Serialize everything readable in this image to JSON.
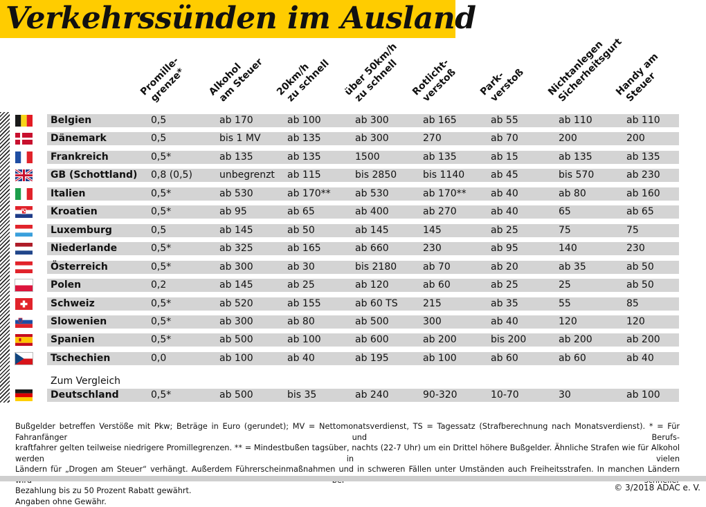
{
  "title": "Verkehrssünden im Ausland",
  "columns": [
    {
      "lines": [
        "Promille-",
        "grenze*"
      ]
    },
    {
      "lines": [
        "Alkohol",
        "am Steuer"
      ]
    },
    {
      "lines": [
        "20km/h",
        "zu schnell"
      ]
    },
    {
      "lines": [
        "über 50km/h",
        "zu schnell"
      ]
    },
    {
      "lines": [
        "Rotlicht-",
        "verstoß"
      ]
    },
    {
      "lines": [
        "Park-",
        "verstoß"
      ]
    },
    {
      "lines": [
        "Nichtanlegen",
        "Sicherheitsgurt"
      ]
    },
    {
      "lines": [
        "Handy am",
        "Steuer"
      ]
    }
  ],
  "rows": [
    {
      "country": "Belgien",
      "flag": "belgium-flag",
      "values": [
        "0,5",
        "ab 170",
        "ab 100",
        "ab 300",
        "ab 165",
        "ab 55",
        "ab 110",
        "ab 110"
      ]
    },
    {
      "country": "Dänemark",
      "flag": "denmark-flag",
      "values": [
        "0,5",
        "bis 1 MV",
        "ab 135",
        "ab 300",
        "270",
        "ab 70",
        "200",
        "200"
      ]
    },
    {
      "country": "Frankreich",
      "flag": "france-flag",
      "values": [
        "0,5*",
        "ab 135",
        "ab 135",
        "1500",
        "ab 135",
        "ab 15",
        "ab 135",
        "ab 135"
      ]
    },
    {
      "country": "GB (Schottland)",
      "flag": "uk-flag",
      "values": [
        "0,8 (0,5)",
        "unbegrenzt",
        "ab 115",
        "bis 2850",
        "bis 1140",
        "ab 45",
        "bis 570",
        "ab 230"
      ]
    },
    {
      "country": "Italien",
      "flag": "italy-flag",
      "values": [
        "0,5*",
        "ab 530",
        "ab 170**",
        "ab 530",
        "ab 170**",
        "ab 40",
        "ab 80",
        "ab 160"
      ]
    },
    {
      "country": "Kroatien",
      "flag": "croatia-flag",
      "values": [
        "0,5*",
        "ab 95",
        "ab 65",
        "ab 400",
        "ab 270",
        "ab 40",
        "65",
        "ab 65"
      ]
    },
    {
      "country": "Luxemburg",
      "flag": "luxembourg-flag",
      "values": [
        "0,5",
        "ab 145",
        "ab 50",
        "ab 145",
        "145",
        "ab 25",
        "75",
        "75"
      ]
    },
    {
      "country": "Niederlande",
      "flag": "netherlands-flag",
      "values": [
        "0,5*",
        "ab 325",
        "ab 165",
        "ab 660",
        "230",
        "ab 95",
        "140",
        "230"
      ]
    },
    {
      "country": "Österreich",
      "flag": "austria-flag",
      "values": [
        "0,5*",
        "ab 300",
        "ab 30",
        "bis 2180",
        "ab 70",
        "ab 20",
        "ab 35",
        "ab 50"
      ]
    },
    {
      "country": "Polen",
      "flag": "poland-flag",
      "values": [
        "0,2",
        "ab 145",
        "ab 25",
        "ab 120",
        "ab 60",
        "ab 25",
        "25",
        "ab 50"
      ]
    },
    {
      "country": "Schweiz",
      "flag": "switzerland-flag",
      "values": [
        "0,5*",
        "ab 520",
        "ab 155",
        "ab 60 TS",
        "215",
        "ab 35",
        "55",
        "85"
      ]
    },
    {
      "country": "Slowenien",
      "flag": "slovenia-flag",
      "values": [
        "0,5*",
        "ab 300",
        "ab 80",
        "ab 500",
        "300",
        "ab 40",
        "120",
        "120"
      ]
    },
    {
      "country": "Spanien",
      "flag": "spain-flag",
      "values": [
        "0,5*",
        "ab 500",
        "ab 100",
        "ab 600",
        "ab 200",
        "bis 200",
        "ab 200",
        "ab 200"
      ]
    },
    {
      "country": "Tschechien",
      "flag": "czech-flag",
      "values": [
        "0,0",
        "ab 100",
        "ab 40",
        "ab 195",
        "ab 100",
        "ab 60",
        "ab 60",
        "ab 40"
      ]
    }
  ],
  "comparison_label": "Zum Vergleich",
  "comparison_row": {
    "country": "Deutschland",
    "flag": "germany-flag",
    "values": [
      "0,5*",
      "ab 500",
      "bis 35",
      "ab 240",
      "90-320",
      "10-70",
      "30",
      "ab 100"
    ]
  },
  "footnote": {
    "line1": "Bußgelder betreffen Verstöße mit Pkw; Beträge in Euro (gerundet); MV = Nettomonatsverdienst, TS = Tagessatz (Strafberechnung nach Monatsverdienst). * = Für Fahranfänger und Berufs-",
    "line2": "kraftfahrer gelten teilweise niedrigere Promillegrenzen. ** = Mindestbußen tagsüber, nachts (22-7 Uhr) um ein Drittel höhere Bußgelder. Ähnliche Strafen wie für Alkohol werden in vielen",
    "line3": "Ländern für „Drogen am Steuer“ verhängt. Außerdem Führerscheinmaßnahmen und in schweren Fällen unter Umständen auch Freiheitsstrafen. In manchen Ländern wird bei schneller",
    "line4": "Bezahlung bis zu 50 Prozent Rabatt gewährt.",
    "line5": "Angaben ohne Gewähr."
  },
  "copyright": "© 3/2018 ADAC e. V.",
  "colors": {
    "accent_yellow": "#ffcc00",
    "row_shade": "#d4d4d4"
  }
}
